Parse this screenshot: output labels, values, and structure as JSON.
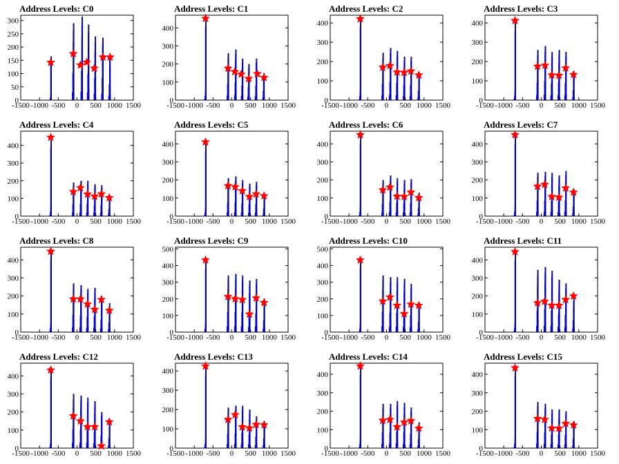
{
  "title_prefix": "Address Levels: ",
  "colors": {
    "histogram": "#0000ff",
    "peak_stem": "#000000",
    "marker": "#ff0000",
    "frame": "#000000"
  },
  "chart_data": [
    {
      "type": "bar",
      "title": "Address Levels: C0",
      "xlim": [
        -1500,
        1500
      ],
      "ylim": [
        0,
        320
      ],
      "xticks": [
        -1500,
        -1000,
        -500,
        0,
        500,
        1000,
        1500
      ],
      "yticks": [
        0,
        50,
        100,
        150,
        200,
        250,
        300
      ],
      "peaks": [
        [
          -700,
          165
        ],
        [
          -100,
          290
        ],
        [
          130,
          315
        ],
        [
          300,
          285
        ],
        [
          480,
          240
        ],
        [
          680,
          235
        ],
        [
          870,
          170
        ]
      ],
      "markers": [
        [
          -700,
          142
        ],
        [
          -100,
          175
        ],
        [
          90,
          132
        ],
        [
          260,
          143
        ],
        [
          460,
          120
        ],
        [
          690,
          162
        ],
        [
          880,
          162
        ]
      ]
    },
    {
      "type": "bar",
      "title": "Address Levels: C1",
      "xlim": [
        -1500,
        1500
      ],
      "ylim": [
        0,
        470
      ],
      "xticks": [
        -1500,
        -1000,
        -500,
        0,
        500,
        1000,
        1500
      ],
      "yticks": [
        0,
        100,
        200,
        300,
        400
      ],
      "peaks": [
        [
          -700,
          450
        ],
        [
          -100,
          260
        ],
        [
          100,
          280
        ],
        [
          280,
          230
        ],
        [
          450,
          200
        ],
        [
          650,
          230
        ],
        [
          850,
          150
        ]
      ],
      "markers": [
        [
          -700,
          452
        ],
        [
          -100,
          176
        ],
        [
          80,
          157
        ],
        [
          250,
          143
        ],
        [
          450,
          119
        ],
        [
          680,
          146
        ],
        [
          860,
          125
        ]
      ]
    },
    {
      "type": "bar",
      "title": "Address Levels: C2",
      "xlim": [
        -1500,
        1500
      ],
      "ylim": [
        0,
        440
      ],
      "xticks": [
        -1500,
        -1000,
        -500,
        0,
        500,
        1000,
        1500
      ],
      "yticks": [
        0,
        100,
        200,
        300,
        400
      ],
      "peaks": [
        [
          -700,
          420
        ],
        [
          -100,
          245
        ],
        [
          100,
          270
        ],
        [
          280,
          255
        ],
        [
          470,
          225
        ],
        [
          650,
          225
        ],
        [
          860,
          140
        ]
      ],
      "markers": [
        [
          -700,
          421
        ],
        [
          -100,
          170
        ],
        [
          90,
          178
        ],
        [
          280,
          145
        ],
        [
          470,
          143
        ],
        [
          650,
          150
        ],
        [
          860,
          130
        ]
      ]
    },
    {
      "type": "bar",
      "title": "Address Levels: C3",
      "xlim": [
        -1500,
        1500
      ],
      "ylim": [
        0,
        440
      ],
      "xticks": [
        -1500,
        -1000,
        -500,
        0,
        500,
        1000,
        1500
      ],
      "yticks": [
        0,
        100,
        200,
        300,
        400
      ],
      "peaks": [
        [
          -700,
          400
        ],
        [
          -100,
          260
        ],
        [
          100,
          280
        ],
        [
          280,
          250
        ],
        [
          470,
          260
        ],
        [
          650,
          250
        ],
        [
          860,
          150
        ]
      ],
      "markers": [
        [
          -700,
          412
        ],
        [
          -100,
          175
        ],
        [
          100,
          180
        ],
        [
          280,
          130
        ],
        [
          470,
          128
        ],
        [
          650,
          166
        ],
        [
          860,
          132
        ]
      ]
    },
    {
      "type": "bar",
      "title": "Address Levels: C4",
      "xlim": [
        -1500,
        1500
      ],
      "ylim": [
        0,
        480
      ],
      "xticks": [
        -1500,
        -1000,
        -500,
        0,
        500,
        1000,
        1500
      ],
      "yticks": [
        0,
        100,
        200,
        300,
        400
      ],
      "peaks": [
        [
          -700,
          430
        ],
        [
          -100,
          190
        ],
        [
          100,
          200
        ],
        [
          280,
          200
        ],
        [
          470,
          180
        ],
        [
          650,
          175
        ],
        [
          860,
          120
        ]
      ],
      "markers": [
        [
          -700,
          445
        ],
        [
          -100,
          138
        ],
        [
          90,
          160
        ],
        [
          280,
          124
        ],
        [
          470,
          112
        ],
        [
          650,
          125
        ],
        [
          860,
          104
        ]
      ]
    },
    {
      "type": "bar",
      "title": "Address Levels: C5",
      "xlim": [
        -1500,
        1500
      ],
      "ylim": [
        0,
        470
      ],
      "xticks": [
        -1500,
        -1000,
        -500,
        0,
        500,
        1000,
        1500
      ],
      "yticks": [
        0,
        100,
        200,
        300,
        400
      ],
      "peaks": [
        [
          -700,
          400
        ],
        [
          -100,
          210
        ],
        [
          100,
          220
        ],
        [
          280,
          200
        ],
        [
          470,
          180
        ],
        [
          650,
          190
        ],
        [
          860,
          120
        ]
      ],
      "markers": [
        [
          -700,
          410
        ],
        [
          -100,
          168
        ],
        [
          90,
          162
        ],
        [
          280,
          140
        ],
        [
          470,
          108
        ],
        [
          650,
          122
        ],
        [
          860,
          112
        ]
      ]
    },
    {
      "type": "bar",
      "title": "Address Levels: C6",
      "xlim": [
        -1500,
        1500
      ],
      "ylim": [
        0,
        470
      ],
      "xticks": [
        -1500,
        -1000,
        -500,
        0,
        500,
        1000,
        1500
      ],
      "yticks": [
        0,
        100,
        200,
        300,
        400
      ],
      "peaks": [
        [
          -700,
          440
        ],
        [
          -100,
          200
        ],
        [
          100,
          225
        ],
        [
          280,
          210
        ],
        [
          470,
          200
        ],
        [
          650,
          205
        ],
        [
          860,
          130
        ]
      ],
      "markers": [
        [
          -700,
          450
        ],
        [
          -100,
          145
        ],
        [
          90,
          160
        ],
        [
          280,
          110
        ],
        [
          470,
          108
        ],
        [
          650,
          132
        ],
        [
          860,
          102
        ]
      ]
    },
    {
      "type": "bar",
      "title": "Address Levels: C7",
      "xlim": [
        -1500,
        1500
      ],
      "ylim": [
        0,
        470
      ],
      "xticks": [
        -1500,
        -1000,
        -500,
        0,
        500,
        1000,
        1500
      ],
      "yticks": [
        0,
        100,
        200,
        300,
        400
      ],
      "peaks": [
        [
          -700,
          440
        ],
        [
          -100,
          240
        ],
        [
          100,
          245
        ],
        [
          280,
          240
        ],
        [
          470,
          225
        ],
        [
          650,
          250
        ],
        [
          860,
          150
        ]
      ],
      "markers": [
        [
          -700,
          450
        ],
        [
          -100,
          165
        ],
        [
          90,
          175
        ],
        [
          280,
          108
        ],
        [
          470,
          104
        ],
        [
          650,
          155
        ],
        [
          860,
          132
        ]
      ]
    },
    {
      "type": "bar",
      "title": "Address Levels: C8",
      "xlim": [
        -1500,
        1500
      ],
      "ylim": [
        0,
        470
      ],
      "xticks": [
        -1500,
        -1000,
        -500,
        0,
        500,
        1000,
        1500
      ],
      "yticks": [
        0,
        100,
        200,
        300,
        400
      ],
      "peaks": [
        [
          -700,
          440
        ],
        [
          -100,
          270
        ],
        [
          100,
          260
        ],
        [
          280,
          240
        ],
        [
          470,
          245
        ],
        [
          650,
          200
        ],
        [
          860,
          160
        ]
      ],
      "markers": [
        [
          -700,
          447
        ],
        [
          -100,
          183
        ],
        [
          90,
          183
        ],
        [
          280,
          155
        ],
        [
          470,
          125
        ],
        [
          650,
          180
        ],
        [
          860,
          120
        ]
      ]
    },
    {
      "type": "bar",
      "title": "Address Levels: C9",
      "xlim": [
        -1500,
        1500
      ],
      "ylim": [
        0,
        510
      ],
      "xticks": [
        -1500,
        -1000,
        -500,
        0,
        500,
        1000,
        1500
      ],
      "yticks": [
        0,
        100,
        200,
        300,
        400,
        500
      ],
      "peaks": [
        [
          -700,
          420
        ],
        [
          -100,
          340
        ],
        [
          100,
          350
        ],
        [
          280,
          340
        ],
        [
          470,
          310
        ],
        [
          650,
          320
        ],
        [
          860,
          200
        ]
      ],
      "markers": [
        [
          -700,
          433
        ],
        [
          -100,
          213
        ],
        [
          90,
          200
        ],
        [
          280,
          195
        ],
        [
          470,
          108
        ],
        [
          650,
          205
        ],
        [
          860,
          177
        ]
      ]
    },
    {
      "type": "bar",
      "title": "Address Levels: C10",
      "xlim": [
        -1500,
        1500
      ],
      "ylim": [
        0,
        510
      ],
      "xticks": [
        -1500,
        -1000,
        -500,
        0,
        500,
        1000,
        1500
      ],
      "yticks": [
        0,
        100,
        200,
        300,
        400,
        500
      ],
      "peaks": [
        [
          -700,
          430
        ],
        [
          -100,
          340
        ],
        [
          100,
          330
        ],
        [
          280,
          330
        ],
        [
          470,
          320
        ],
        [
          650,
          290
        ],
        [
          860,
          180
        ]
      ],
      "markers": [
        [
          -700,
          433
        ],
        [
          -100,
          186
        ],
        [
          90,
          210
        ],
        [
          280,
          160
        ],
        [
          470,
          110
        ],
        [
          650,
          167
        ],
        [
          860,
          160
        ]
      ]
    },
    {
      "type": "bar",
      "title": "Address Levels: C11",
      "xlim": [
        -1500,
        1500
      ],
      "ylim": [
        0,
        470
      ],
      "xticks": [
        -1500,
        -1000,
        -500,
        0,
        500,
        1000,
        1500
      ],
      "yticks": [
        0,
        100,
        200,
        300,
        400
      ],
      "peaks": [
        [
          -700,
          440
        ],
        [
          -100,
          345
        ],
        [
          100,
          360
        ],
        [
          280,
          340
        ],
        [
          470,
          290
        ],
        [
          650,
          270
        ],
        [
          860,
          190
        ]
      ],
      "markers": [
        [
          -700,
          445
        ],
        [
          -100,
          162
        ],
        [
          90,
          170
        ],
        [
          280,
          148
        ],
        [
          470,
          148
        ],
        [
          650,
          180
        ],
        [
          860,
          200
        ]
      ]
    },
    {
      "type": "bar",
      "title": "Address Levels: C12",
      "xlim": [
        -1500,
        1500
      ],
      "ylim": [
        0,
        470
      ],
      "xticks": [
        -1500,
        -1000,
        -500,
        0,
        500,
        1000,
        1500
      ],
      "yticks": [
        0,
        100,
        200,
        300,
        400
      ],
      "peaks": [
        [
          -700,
          430
        ],
        [
          -100,
          300
        ],
        [
          100,
          290
        ],
        [
          280,
          280
        ],
        [
          470,
          260
        ],
        [
          650,
          200
        ],
        [
          860,
          160
        ]
      ],
      "markers": [
        [
          -700,
          432
        ],
        [
          -100,
          178
        ],
        [
          90,
          150
        ],
        [
          280,
          118
        ],
        [
          470,
          118
        ],
        [
          650,
          12
        ],
        [
          860,
          145
        ]
      ]
    },
    {
      "type": "bar",
      "title": "Address Levels: C13",
      "xlim": [
        -1500,
        1500
      ],
      "ylim": [
        0,
        440
      ],
      "xticks": [
        -1500,
        -1000,
        -500,
        0,
        500,
        1000,
        1500
      ],
      "yticks": [
        0,
        100,
        200,
        300,
        400
      ],
      "peaks": [
        [
          -700,
          420
        ],
        [
          -100,
          210
        ],
        [
          100,
          220
        ],
        [
          280,
          220
        ],
        [
          470,
          200
        ],
        [
          650,
          165
        ],
        [
          860,
          140
        ]
      ],
      "markers": [
        [
          -700,
          425
        ],
        [
          -100,
          148
        ],
        [
          90,
          173
        ],
        [
          280,
          110
        ],
        [
          470,
          104
        ],
        [
          650,
          122
        ],
        [
          860,
          120
        ]
      ]
    },
    {
      "type": "bar",
      "title": "Address Levels: C14",
      "xlim": [
        -1500,
        1500
      ],
      "ylim": [
        0,
        460
      ],
      "xticks": [
        -1500,
        -1000,
        -500,
        0,
        500,
        1000,
        1500
      ],
      "yticks": [
        0,
        100,
        200,
        300,
        400
      ],
      "peaks": [
        [
          -700,
          440
        ],
        [
          -100,
          240
        ],
        [
          100,
          240
        ],
        [
          280,
          255
        ],
        [
          470,
          245
        ],
        [
          650,
          220
        ],
        [
          860,
          140
        ]
      ],
      "markers": [
        [
          -700,
          445
        ],
        [
          -100,
          150
        ],
        [
          90,
          155
        ],
        [
          280,
          115
        ],
        [
          470,
          140
        ],
        [
          650,
          148
        ],
        [
          860,
          108
        ]
      ]
    },
    {
      "type": "bar",
      "title": "Address Levels: C15",
      "xlim": [
        -1500,
        1500
      ],
      "ylim": [
        0,
        460
      ],
      "xticks": [
        -1500,
        -1000,
        -500,
        0,
        500,
        1000,
        1500
      ],
      "yticks": [
        0,
        100,
        200,
        300,
        400
      ],
      "peaks": [
        [
          -700,
          430
        ],
        [
          -100,
          250
        ],
        [
          100,
          240
        ],
        [
          280,
          210
        ],
        [
          470,
          210
        ],
        [
          650,
          200
        ],
        [
          860,
          145
        ]
      ],
      "markers": [
        [
          -700,
          435
        ],
        [
          -100,
          160
        ],
        [
          90,
          155
        ],
        [
          280,
          108
        ],
        [
          470,
          107
        ],
        [
          650,
          133
        ],
        [
          860,
          125
        ]
      ]
    }
  ]
}
